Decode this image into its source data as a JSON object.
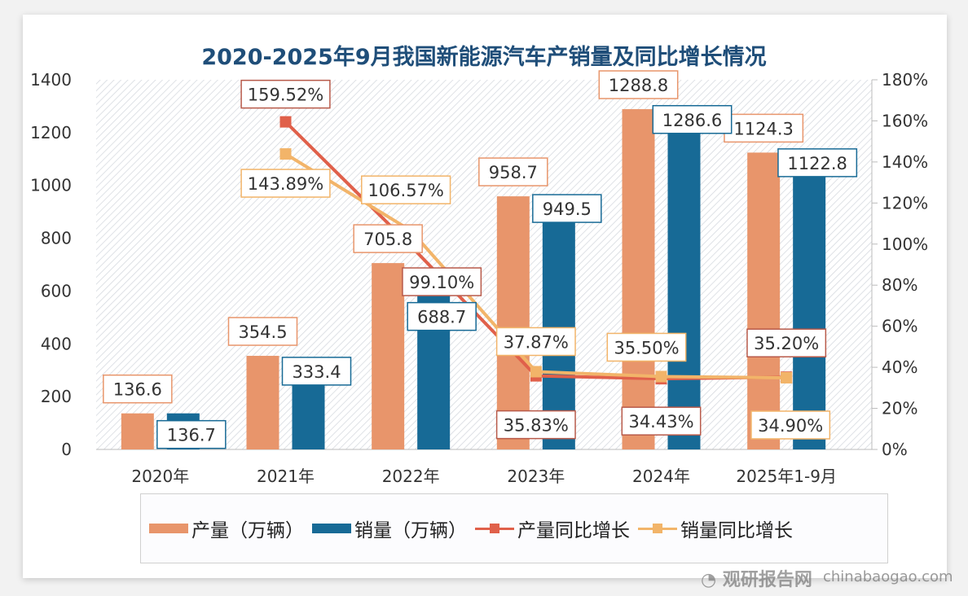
{
  "chart_data": {
    "type": "bar",
    "title": "2020-2025年9月我国新能源汽车产销量及同比增长情况",
    "categories": [
      "2020年",
      "2021年",
      "2022年",
      "2023年",
      "2024年",
      "2025年1-9月"
    ],
    "bar_series": [
      {
        "name": "产量（万辆）",
        "color": "#e8956b",
        "values": [
          136.6,
          354.5,
          705.8,
          958.7,
          1288.8,
          1124.3
        ],
        "labels": [
          "136.6",
          "354.5",
          "705.8",
          "958.7",
          "1288.8",
          "1124.3"
        ]
      },
      {
        "name": "销量（万辆）",
        "color": "#176a96",
        "values": [
          136.7,
          333.4,
          688.7,
          949.5,
          1286.6,
          1122.8
        ],
        "labels": [
          "136.7",
          "333.4",
          "688.7",
          "949.5",
          "1286.6",
          "1122.8"
        ]
      }
    ],
    "line_series": [
      {
        "name": "产量同比增长",
        "color": "#e0604a",
        "values": [
          null,
          159.52,
          99.1,
          35.83,
          34.43,
          35.2
        ],
        "labels": [
          "",
          "159.52%",
          "99.10%",
          "35.83%",
          "34.43%",
          "35.20%"
        ]
      },
      {
        "name": "销量同比增长",
        "color": "#f2b469",
        "values": [
          null,
          143.89,
          106.57,
          37.87,
          35.5,
          34.9
        ],
        "labels": [
          "",
          "143.89%",
          "106.57%",
          "37.87%",
          "35.50%",
          "34.90%"
        ]
      }
    ],
    "y_left": {
      "min": 0,
      "max": 1400,
      "ticks": [
        "0",
        "200",
        "400",
        "600",
        "800",
        "1000",
        "1200",
        "1400"
      ]
    },
    "y_right": {
      "min": 0,
      "max": 180,
      "ticks": [
        "0%",
        "20%",
        "40%",
        "60%",
        "80%",
        "100%",
        "120%",
        "140%",
        "160%",
        "180%"
      ]
    },
    "legend_position": "bottom",
    "grid": false
  },
  "watermark": {
    "cn": "观研报告网",
    "en": "chinabaogao.com"
  }
}
